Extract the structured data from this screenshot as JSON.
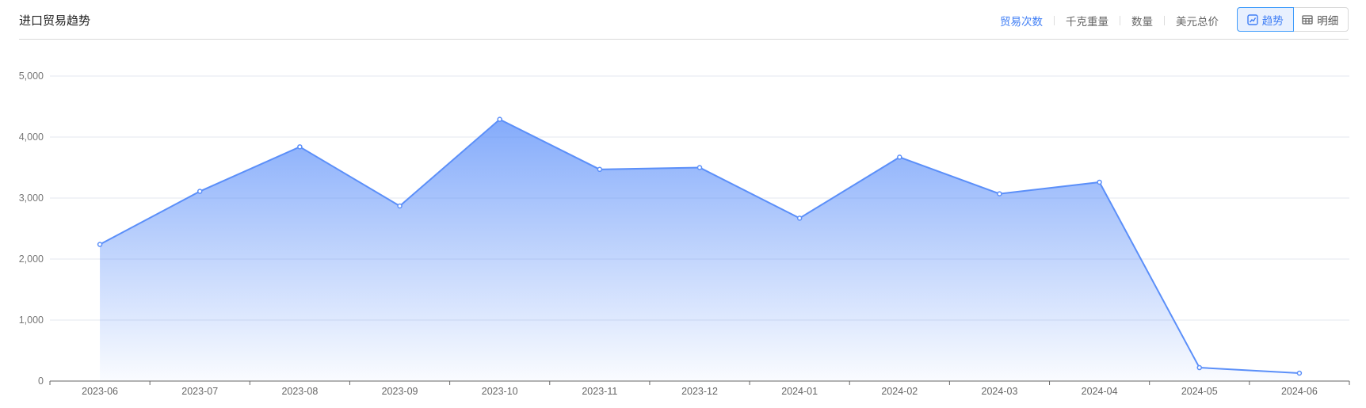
{
  "header": {
    "title": "进口贸易趋势"
  },
  "metric_tabs": [
    {
      "label": "贸易次数",
      "active": true
    },
    {
      "label": "千克重量",
      "active": false
    },
    {
      "label": "数量",
      "active": false
    },
    {
      "label": "美元总价",
      "active": false
    }
  ],
  "view_toggle": [
    {
      "label": "趋势",
      "icon": "line-chart-icon",
      "active": true
    },
    {
      "label": "明细",
      "icon": "table-icon",
      "active": false
    }
  ],
  "colors": {
    "accent": "#3f7ef5",
    "line": "#5b8ff9"
  },
  "chart_data": {
    "type": "area",
    "categories": [
      "2023-06",
      "2023-07",
      "2023-08",
      "2023-09",
      "2023-10",
      "2023-11",
      "2023-12",
      "2024-01",
      "2024-02",
      "2024-03",
      "2024-04",
      "2024-05",
      "2024-06"
    ],
    "values": [
      2240,
      3110,
      3840,
      2870,
      4290,
      3470,
      3500,
      2670,
      3670,
      3070,
      3260,
      220,
      130
    ],
    "ylim": [
      0,
      5000
    ],
    "yticks": [
      "0",
      "1,000",
      "2,000",
      "3,000",
      "4,000",
      "5,000"
    ],
    "ytick_values": [
      0,
      1000,
      2000,
      3000,
      4000,
      5000
    ],
    "grid": true
  }
}
